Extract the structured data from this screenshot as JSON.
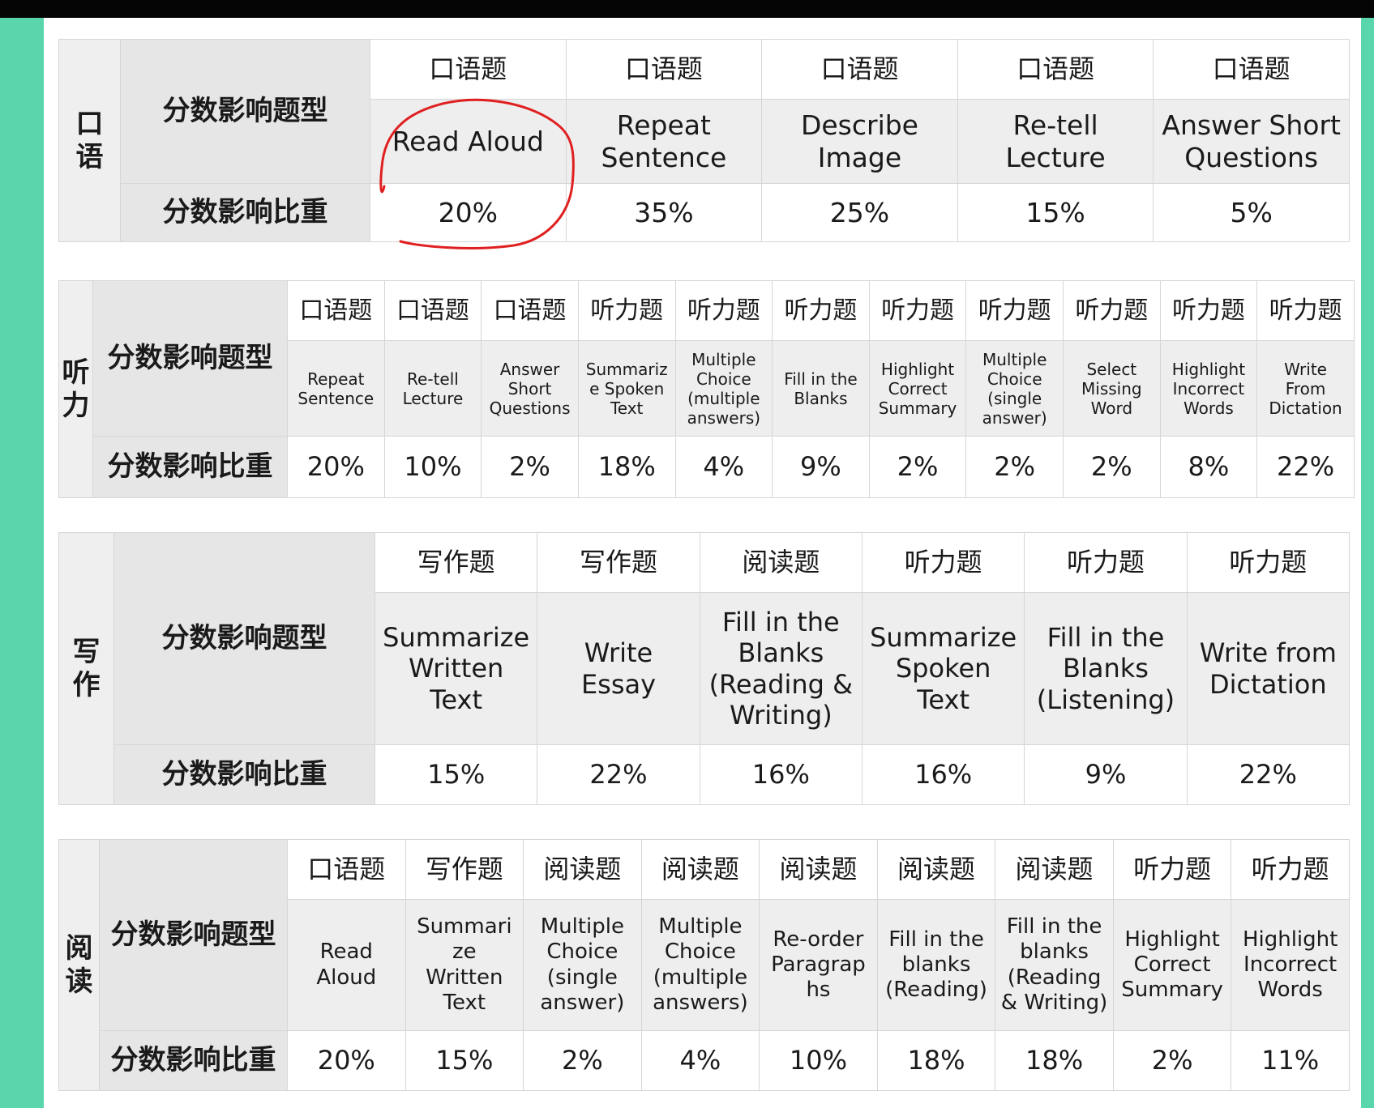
{
  "colors": {
    "accent_bg": "#5ad6ad",
    "highlight_circle": "#e02020"
  },
  "speaking": {
    "section": "口\n语",
    "type_label": "分数影响题型",
    "weight_label": "分数影响比重",
    "categories": [
      "口语题",
      "口语题",
      "口语题",
      "口语题",
      "口语题"
    ],
    "items": [
      "Read Aloud",
      "Repeat\nSentence",
      "Describe\nImage",
      "Re-tell\nLecture",
      "Answer Short\nQuestions"
    ],
    "weights": [
      "20%",
      "35%",
      "25%",
      "15%",
      "5%"
    ]
  },
  "listening": {
    "section": "听\n力",
    "type_label": "分数影响题型",
    "weight_label": "分数影响比重",
    "categories": [
      "口语题",
      "口语题",
      "口语题",
      "听力题",
      "听力题",
      "听力题",
      "听力题",
      "听力题",
      "听力题",
      "听力题",
      "听力题"
    ],
    "items": [
      "Repeat\nSentence",
      "Re-tell\nLecture",
      "Answer\nShort\nQuestions",
      "Summariz\ne Spoken\nText",
      "Multiple\nChoice\n(multiple\nanswers)",
      "Fill in the\nBlanks",
      "Highlight\nCorrect\nSummary",
      "Multiple\nChoice\n(single\nanswer)",
      "Select\nMissing\nWord",
      "Highlight\nIncorrect\nWords",
      "Write\nFrom\nDictation"
    ],
    "weights": [
      "20%",
      "10%",
      "2%",
      "18%",
      "4%",
      "9%",
      "2%",
      "2%",
      "2%",
      "8%",
      "22%"
    ]
  },
  "writing": {
    "section": "写\n作",
    "type_label": "分数影响题型",
    "weight_label": "分数影响比重",
    "categories": [
      "写作题",
      "写作题",
      "阅读题",
      "听力题",
      "听力题",
      "听力题"
    ],
    "items": [
      "Summarize\nWritten\nText",
      "Write\nEssay",
      "Fill in the\nBlanks\n(Reading &\nWriting)",
      "Summarize\nSpoken\nText",
      "Fill in the\nBlanks\n(Listening)",
      "Write from\nDictation"
    ],
    "weights": [
      "15%",
      "22%",
      "16%",
      "16%",
      "9%",
      "22%"
    ]
  },
  "reading": {
    "section": "阅\n读",
    "type_label": "分数影响题型",
    "weight_label": "分数影响比重",
    "categories": [
      "口语题",
      "写作题",
      "阅读题",
      "阅读题",
      "阅读题",
      "阅读题",
      "阅读题",
      "听力题",
      "听力题"
    ],
    "items": [
      "Read\nAloud",
      "Summari\nze\nWritten\nText",
      "Multiple\nChoice\n(single\nanswer)",
      "Multiple\nChoice\n(multiple\nanswers)",
      "Re-order\nParagrap\nhs",
      "Fill in the\nblanks\n(Reading)",
      "Fill in the\nblanks\n(Reading\n& Writing)",
      "Highlight\nCorrect\nSummary",
      "Highlight\nIncorrect\nWords"
    ],
    "weights": [
      "20%",
      "15%",
      "2%",
      "4%",
      "10%",
      "18%",
      "18%",
      "2%",
      "11%"
    ]
  }
}
